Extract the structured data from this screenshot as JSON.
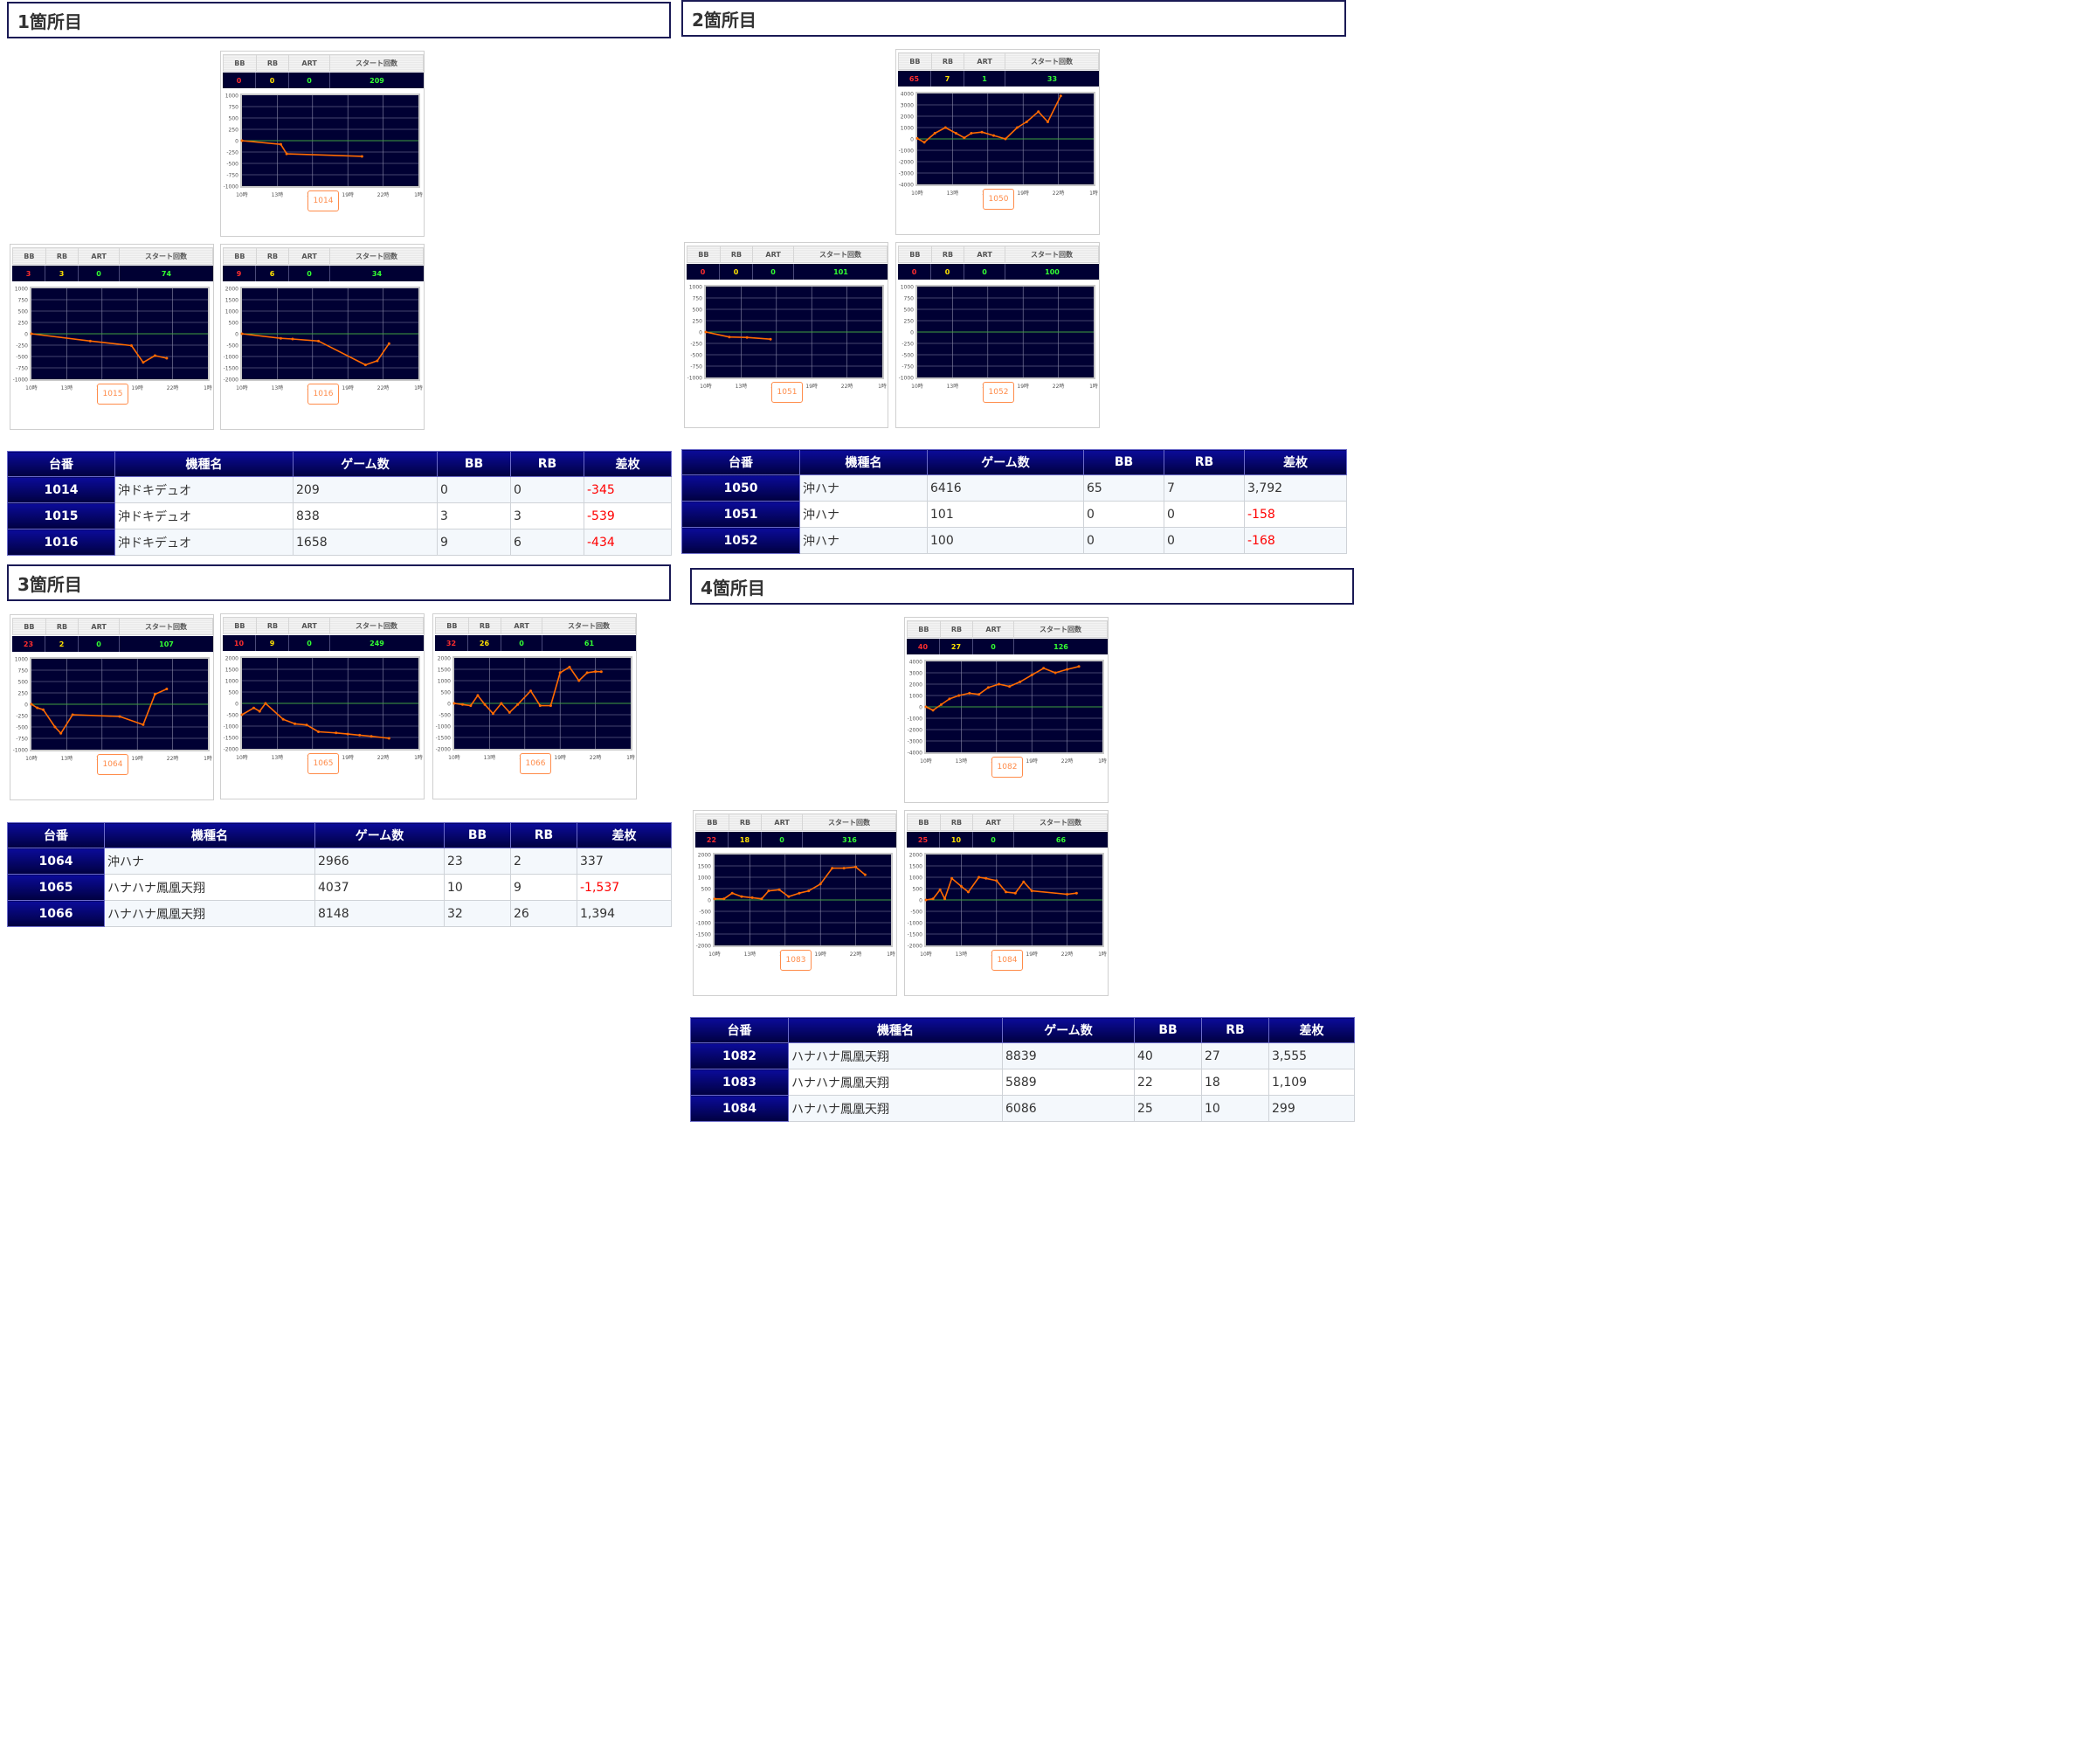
{
  "sections": [
    {
      "title": "1箇所目"
    },
    {
      "title": "2箇所目"
    },
    {
      "title": "3箇所目"
    },
    {
      "title": "4箇所目"
    }
  ],
  "card_header": {
    "bb": "BB",
    "rb": "RB",
    "art": "ART",
    "start": "スタート回数"
  },
  "tables": [
    {
      "headers": [
        "台番",
        "機種名",
        "ゲーム数",
        "BB",
        "RB",
        "差枚"
      ],
      "rows": [
        {
          "no": "1014",
          "model": "沖ドキデュオ",
          "games": "209",
          "bb": "0",
          "rb": "0",
          "diff": "-345"
        },
        {
          "no": "1015",
          "model": "沖ドキデュオ",
          "games": "838",
          "bb": "3",
          "rb": "3",
          "diff": "-539"
        },
        {
          "no": "1016",
          "model": "沖ドキデュオ",
          "games": "1658",
          "bb": "9",
          "rb": "6",
          "diff": "-434"
        }
      ]
    },
    {
      "headers": [
        "台番",
        "機種名",
        "ゲーム数",
        "BB",
        "RB",
        "差枚"
      ],
      "rows": [
        {
          "no": "1050",
          "model": "沖ハナ",
          "games": "6416",
          "bb": "65",
          "rb": "7",
          "diff": "3,792"
        },
        {
          "no": "1051",
          "model": "沖ハナ",
          "games": "101",
          "bb": "0",
          "rb": "0",
          "diff": "-158"
        },
        {
          "no": "1052",
          "model": "沖ハナ",
          "games": "100",
          "bb": "0",
          "rb": "0",
          "diff": "-168"
        }
      ]
    },
    {
      "headers": [
        "台番",
        "機種名",
        "ゲーム数",
        "BB",
        "RB",
        "差枚"
      ],
      "rows": [
        {
          "no": "1064",
          "model": "沖ハナ",
          "games": "2966",
          "bb": "23",
          "rb": "2",
          "diff": "337"
        },
        {
          "no": "1065",
          "model": "ハナハナ鳳凰天翔",
          "games": "4037",
          "bb": "10",
          "rb": "9",
          "diff": "-1,537"
        },
        {
          "no": "1066",
          "model": "ハナハナ鳳凰天翔",
          "games": "8148",
          "bb": "32",
          "rb": "26",
          "diff": "1,394"
        }
      ]
    },
    {
      "headers": [
        "台番",
        "機種名",
        "ゲーム数",
        "BB",
        "RB",
        "差枚"
      ],
      "rows": [
        {
          "no": "1082",
          "model": "ハナハナ鳳凰天翔",
          "games": "8839",
          "bb": "40",
          "rb": "27",
          "diff": "3,555"
        },
        {
          "no": "1083",
          "model": "ハナハナ鳳凰天翔",
          "games": "5889",
          "bb": "22",
          "rb": "18",
          "diff": "1,109"
        },
        {
          "no": "1084",
          "model": "ハナハナ鳳凰天翔",
          "games": "6086",
          "bb": "25",
          "rb": "10",
          "diff": "299"
        }
      ]
    }
  ],
  "colors": {
    "line": "#ff6a00",
    "plot_bg": "#000033",
    "zero_line": "#3fa03f",
    "bb": "#ff2d2d",
    "rb": "#ffe100",
    "art": "#33ff33"
  },
  "chart_data": [
    {
      "type": "line",
      "label": "1014",
      "bb": "0",
      "rb": "0",
      "art": "0",
      "start": "209",
      "x_ticks": [
        "10時",
        "13時",
        "16時",
        "19時",
        "22時",
        "1時"
      ],
      "y_ticks": [
        "1000",
        "750",
        "500",
        "250",
        "0",
        "-250",
        "-500",
        "-750",
        "-1000"
      ],
      "ylim": [
        -1000,
        1000
      ],
      "x": [
        10,
        13.3,
        13.8,
        20.2
      ],
      "y": [
        0,
        -80,
        -290,
        -345
      ]
    },
    {
      "type": "line",
      "label": "1015",
      "bb": "3",
      "rb": "3",
      "art": "0",
      "start": "74",
      "x_ticks": [
        "10時",
        "13時",
        "16時",
        "19時",
        "22時",
        "1時"
      ],
      "y_ticks": [
        "1000",
        "750",
        "500",
        "250",
        "0",
        "-250",
        "-500",
        "-750",
        "-1000"
      ],
      "ylim": [
        -1000,
        1000
      ],
      "x": [
        10,
        15,
        18.5,
        19.5,
        20.5,
        21.5
      ],
      "y": [
        0,
        -160,
        -260,
        -630,
        -480,
        -539
      ]
    },
    {
      "type": "line",
      "label": "1016",
      "bb": "9",
      "rb": "6",
      "art": "0",
      "start": "34",
      "x_ticks": [
        "10時",
        "13時",
        "16時",
        "19時",
        "22時",
        "1時"
      ],
      "y_ticks": [
        "2000",
        "1500",
        "1000",
        "500",
        "0",
        "-500",
        "-1000",
        "-1500",
        "-2000"
      ],
      "ylim": [
        -2000,
        2000
      ],
      "x": [
        10,
        13.3,
        14.3,
        16.5,
        20.5,
        21.5,
        22.5
      ],
      "y": [
        0,
        -200,
        -230,
        -320,
        -1370,
        -1190,
        -434
      ]
    },
    {
      "type": "line",
      "label": "1050",
      "bb": "65",
      "rb": "7",
      "art": "1",
      "start": "33",
      "x_ticks": [
        "10時",
        "13時",
        "16時",
        "19時",
        "22時",
        "1時"
      ],
      "y_ticks": [
        "4000",
        "3000",
        "2000",
        "1000",
        "0",
        "-1000",
        "-2000",
        "-3000",
        "-4000"
      ],
      "ylim": [
        -4000,
        4000
      ],
      "x": [
        10,
        10.6,
        11.5,
        12.4,
        13.3,
        14,
        14.6,
        15.5,
        16.5,
        17.5,
        18.5,
        19.3,
        20.3,
        21.1,
        22.2
      ],
      "y": [
        50,
        -300,
        500,
        1000,
        500,
        100,
        500,
        600,
        300,
        0,
        1000,
        1500,
        2400,
        1500,
        3792
      ]
    },
    {
      "type": "line",
      "label": "1051",
      "bb": "0",
      "rb": "0",
      "art": "0",
      "start": "101",
      "x_ticks": [
        "10時",
        "13時",
        "16時",
        "19時",
        "22時",
        "1時"
      ],
      "y_ticks": [
        "1000",
        "750",
        "500",
        "250",
        "0",
        "-250",
        "-500",
        "-750",
        "-1000"
      ],
      "ylim": [
        -1000,
        1000
      ],
      "x": [
        10,
        12,
        13.5,
        15.5
      ],
      "y": [
        0,
        -110,
        -120,
        -158
      ]
    },
    {
      "type": "line",
      "label": "1052",
      "bb": "0",
      "rb": "0",
      "art": "0",
      "start": "100",
      "x_ticks": [
        "10時",
        "13時",
        "16時",
        "19時",
        "22時",
        "1時"
      ],
      "y_ticks": [
        "1000",
        "750",
        "500",
        "250",
        "0",
        "-250",
        "-500",
        "-750",
        "-1000"
      ],
      "ylim": [
        -1000,
        1000
      ],
      "x": [],
      "y": []
    },
    {
      "type": "line",
      "label": "1064",
      "bb": "23",
      "rb": "2",
      "art": "0",
      "start": "107",
      "x_ticks": [
        "10時",
        "13時",
        "16時",
        "19時",
        "22時",
        "1時"
      ],
      "y_ticks": [
        "1000",
        "750",
        "500",
        "250",
        "0",
        "-250",
        "-500",
        "-750",
        "-1000"
      ],
      "ylim": [
        -1000,
        1000
      ],
      "x": [
        10,
        10.5,
        11,
        12,
        12.5,
        13.5,
        17.5,
        19.5,
        20.5,
        21.5
      ],
      "y": [
        0,
        -80,
        -120,
        -500,
        -640,
        -230,
        -270,
        -450,
        220,
        337
      ]
    },
    {
      "type": "line",
      "label": "1065",
      "bb": "10",
      "rb": "9",
      "art": "0",
      "start": "249",
      "x_ticks": [
        "10時",
        "13時",
        "16時",
        "19時",
        "22時",
        "1時"
      ],
      "y_ticks": [
        "2000",
        "1500",
        "1000",
        "500",
        "0",
        "-500",
        "-1000",
        "-1500",
        "-2000"
      ],
      "ylim": [
        -2000,
        2000
      ],
      "x": [
        10,
        11,
        11.5,
        12,
        13.5,
        14.5,
        15.5,
        16.5,
        18,
        19,
        20,
        21,
        22.5
      ],
      "y": [
        -500,
        -200,
        -350,
        0,
        -700,
        -900,
        -950,
        -1250,
        -1300,
        -1350,
        -1400,
        -1450,
        -1537
      ]
    },
    {
      "type": "line",
      "label": "1066",
      "bb": "32",
      "rb": "26",
      "art": "0",
      "start": "61",
      "x_ticks": [
        "10時",
        "13時",
        "16時",
        "19時",
        "22時",
        "1時"
      ],
      "y_ticks": [
        "2000",
        "1500",
        "1000",
        "500",
        "0",
        "-500",
        "-1000",
        "-1500",
        "-2000"
      ],
      "ylim": [
        -2000,
        2000
      ],
      "x": [
        10,
        10.7,
        11.4,
        12,
        12.6,
        13.3,
        14,
        14.7,
        15.4,
        16.5,
        17.3,
        18.2,
        19,
        19.8,
        20.6,
        21.3,
        22,
        22.5
      ],
      "y": [
        0,
        -50,
        -100,
        350,
        -50,
        -450,
        0,
        -400,
        -50,
        550,
        -100,
        -100,
        1350,
        1600,
        1000,
        1350,
        1400,
        1394
      ]
    },
    {
      "type": "line",
      "label": "1082",
      "bb": "40",
      "rb": "27",
      "art": "0",
      "start": "126",
      "x_ticks": [
        "10時",
        "13時",
        "16時",
        "19時",
        "22時",
        "1時"
      ],
      "y_ticks": [
        "4000",
        "3000",
        "2000",
        "1000",
        "0",
        "-1000",
        "-2000",
        "-3000",
        "-4000"
      ],
      "ylim": [
        -4000,
        4000
      ],
      "x": [
        10,
        10.6,
        11.3,
        12,
        12.8,
        13.7,
        14.5,
        15.3,
        16.2,
        17.1,
        18,
        19,
        20,
        21,
        22,
        23
      ],
      "y": [
        0,
        -300,
        200,
        700,
        1000,
        1200,
        1100,
        1700,
        2000,
        1800,
        2200,
        2800,
        3400,
        3000,
        3300,
        3555
      ]
    },
    {
      "type": "line",
      "label": "1083",
      "bb": "22",
      "rb": "18",
      "art": "0",
      "start": "316",
      "x_ticks": [
        "10時",
        "13時",
        "16時",
        "19時",
        "22時",
        "1時"
      ],
      "y_ticks": [
        "2000",
        "1500",
        "1000",
        "500",
        "0",
        "-500",
        "-1000",
        "-1500",
        "-2000"
      ],
      "ylim": [
        -2000,
        2000
      ],
      "x": [
        10,
        10.8,
        11.5,
        12.3,
        13.2,
        14,
        14.6,
        15.5,
        16.3,
        17.2,
        18,
        19,
        20,
        21,
        22,
        22.8
      ],
      "y": [
        50,
        50,
        300,
        150,
        100,
        50,
        400,
        450,
        150,
        300,
        400,
        700,
        1400,
        1400,
        1450,
        1109
      ]
    },
    {
      "type": "line",
      "label": "1084",
      "bb": "25",
      "rb": "10",
      "art": "0",
      "start": "66",
      "x_ticks": [
        "10時",
        "13時",
        "16時",
        "19時",
        "22時",
        "1時"
      ],
      "y_ticks": [
        "2000",
        "1500",
        "1000",
        "500",
        "0",
        "-500",
        "-1000",
        "-1500",
        "-2000"
      ],
      "ylim": [
        -2000,
        2000
      ],
      "x": [
        10,
        10.6,
        11.2,
        11.6,
        12.2,
        13,
        13.6,
        14.5,
        15.1,
        16,
        16.8,
        17.6,
        18.3,
        19,
        22,
        22.8
      ],
      "y": [
        0,
        50,
        450,
        50,
        950,
        600,
        350,
        1000,
        950,
        850,
        350,
        300,
        800,
        400,
        250,
        299
      ]
    }
  ]
}
